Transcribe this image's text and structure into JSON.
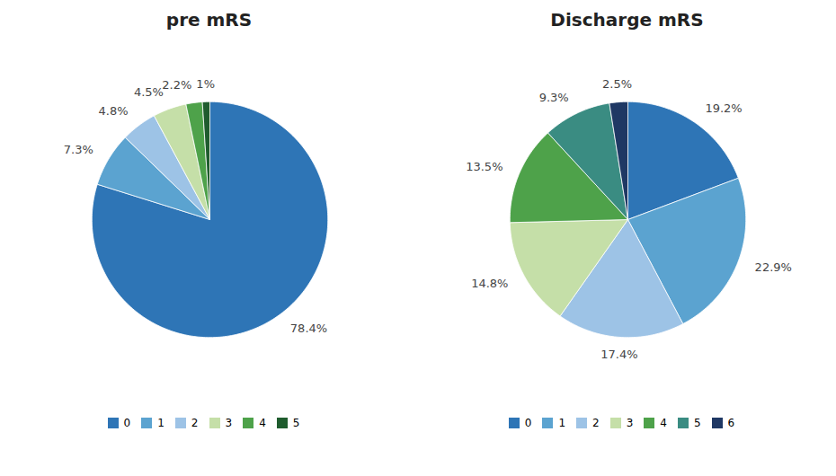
{
  "chart_data": [
    {
      "type": "pie",
      "title": "pre mRS",
      "categories": [
        "0",
        "1",
        "2",
        "3",
        "4",
        "5"
      ],
      "values": [
        78.4,
        7.3,
        4.8,
        4.5,
        2.2,
        1.0
      ],
      "value_labels": [
        "78.4%",
        "7.3%",
        "4.8%",
        "4.5%",
        "2.2%",
        "1%"
      ],
      "colors": [
        "#2E75B6",
        "#5BA3D0",
        "#9DC3E6",
        "#C5DFA8",
        "#4EA24A",
        "#1F5C2E"
      ],
      "data_labels": true,
      "legend": "bottom"
    },
    {
      "type": "pie",
      "title": "Discharge mRS",
      "categories": [
        "0",
        "1",
        "2",
        "3",
        "4",
        "5",
        "6"
      ],
      "values": [
        19.2,
        22.9,
        17.4,
        14.8,
        13.5,
        9.3,
        2.5
      ],
      "value_labels": [
        "19.2%",
        "22.9%",
        "17.4%",
        "14.8%",
        "13.5%",
        "9.3%",
        "2.5%"
      ],
      "colors": [
        "#2E75B6",
        "#5BA3D0",
        "#9DC3E6",
        "#C5DFA8",
        "#4EA24A",
        "#3A8C82",
        "#1F3864"
      ],
      "data_labels": true,
      "legend": "bottom"
    }
  ]
}
